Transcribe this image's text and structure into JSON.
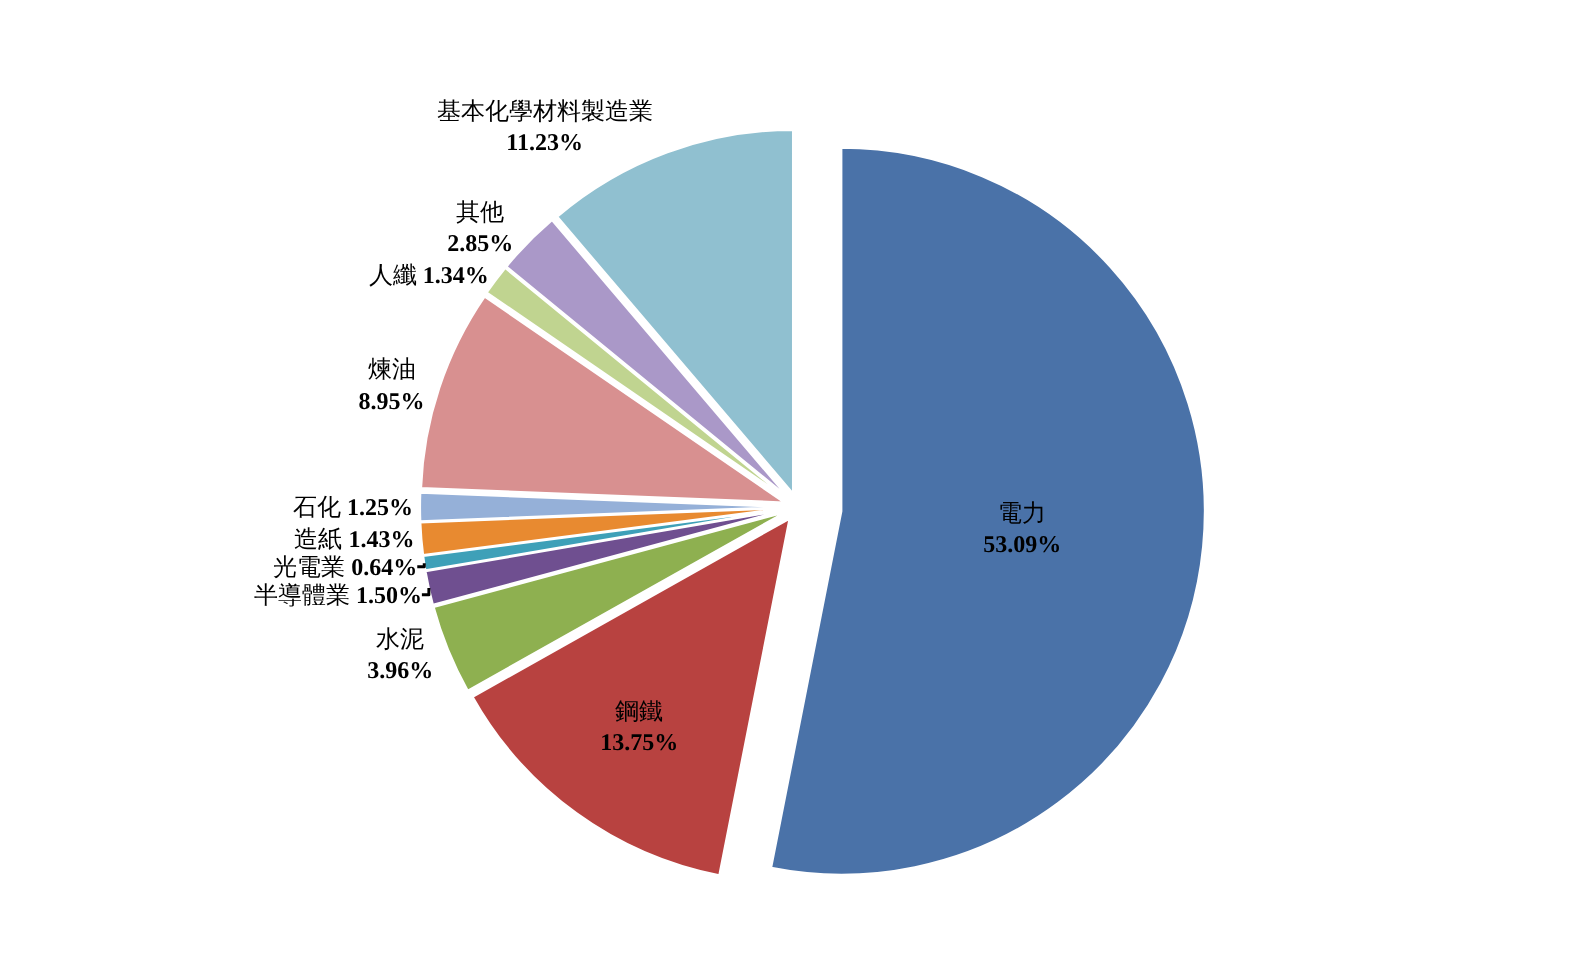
{
  "chart_data": {
    "type": "pie",
    "categories": [
      "電力",
      "鋼鐵",
      "水泥",
      "半導體業",
      "光電業",
      "造紙",
      "石化",
      "煉油",
      "人纖",
      "其他",
      "基本化學材料製造業"
    ],
    "values": [
      53.09,
      13.75,
      3.96,
      1.5,
      0.64,
      1.43,
      1.25,
      8.95,
      1.34,
      2.85,
      11.23
    ],
    "value_labels": [
      "53.09%",
      "13.75%",
      "3.96%",
      "1.50%",
      "0.64%",
      "1.43%",
      "1.25%",
      "8.95%",
      "1.34%",
      "2.85%",
      "11.23%"
    ],
    "colors": [
      "#4a72a8",
      "#b84240",
      "#8eb050",
      "#6f4f90",
      "#3ea0b8",
      "#e88a30",
      "#95b0d8",
      "#d89090",
      "#c0d490",
      "#aa98c8",
      "#90c0d0"
    ],
    "legend": false
  }
}
